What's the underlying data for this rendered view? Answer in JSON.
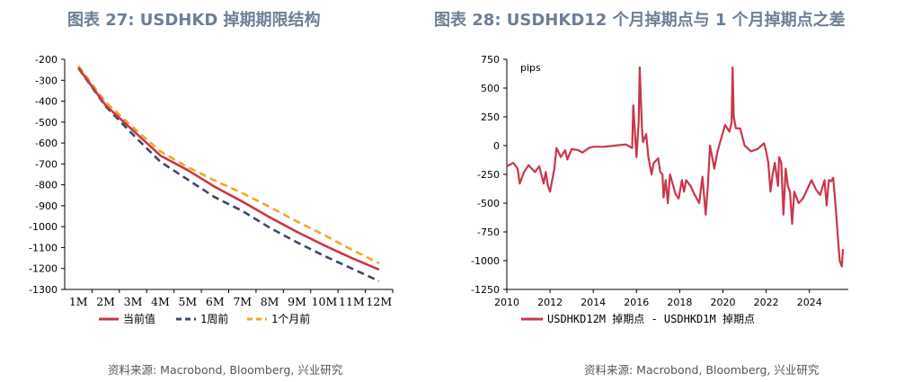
{
  "left_panel": {
    "title": "图表 27: USDHKD 掉期期限结构",
    "source": "资料来源: Macrobond, Bloomberg, 兴业研究"
  },
  "right_panel": {
    "title": "图表 28: USDHKD12 个月掉期点与 1 个月掉期点之差",
    "source": "资料来源: Macrobond, Bloomberg, 兴业研究"
  },
  "colors": {
    "red": "#c8374a",
    "navy": "#3d4a66",
    "orange": "#f5a623"
  },
  "chart_data": [
    {
      "type": "line",
      "title": "USDHKD 掉期期限结构",
      "categories": [
        "1M",
        "2M",
        "3M",
        "4M",
        "5M",
        "6M",
        "7M",
        "8M",
        "9M",
        "10M",
        "11M",
        "12M"
      ],
      "ylim": [
        -1300,
        -200
      ],
      "yticks": [
        -200,
        -300,
        -400,
        -500,
        -600,
        -700,
        -800,
        -900,
        -1000,
        -1100,
        -1200,
        -1300
      ],
      "series": [
        {
          "name": "当前值",
          "color": "#c8374a",
          "dash": "solid",
          "values": [
            -240,
            -420,
            -540,
            -660,
            -730,
            -810,
            -880,
            -955,
            -1025,
            -1090,
            -1150,
            -1205
          ]
        },
        {
          "name": "1周前",
          "color": "#3d4a66",
          "dash": "dashed",
          "values": [
            -242,
            -425,
            -560,
            -690,
            -775,
            -860,
            -925,
            -1005,
            -1075,
            -1140,
            -1200,
            -1260
          ]
        },
        {
          "name": "1个月前",
          "color": "#f5a623",
          "dash": "dashed",
          "values": [
            -232,
            -405,
            -525,
            -640,
            -715,
            -780,
            -840,
            -905,
            -975,
            -1040,
            -1110,
            -1175
          ]
        }
      ],
      "legend_position": "bottom"
    },
    {
      "type": "line",
      "title": "USDHKD12 个月掉期点与 1 个月掉期点之差",
      "unit_label": "pips",
      "xlim": [
        2010,
        2025.8
      ],
      "xticks": [
        2010,
        2012,
        2014,
        2016,
        2018,
        2020,
        2022,
        2024
      ],
      "ylim": [
        -1250,
        750
      ],
      "yticks": [
        750,
        500,
        250,
        0,
        -250,
        -500,
        -750,
        -1000,
        -1250
      ],
      "series": [
        {
          "name": "USDHKD12M 掉期点 - USDHKD1M 掉期点",
          "color": "#c8374a",
          "x": [
            2010.0,
            2010.3,
            2010.5,
            2010.6,
            2010.8,
            2011.0,
            2011.3,
            2011.5,
            2011.7,
            2011.8,
            2011.9,
            2012.0,
            2012.2,
            2012.3,
            2012.5,
            2012.7,
            2012.8,
            2013.0,
            2013.3,
            2013.5,
            2013.8,
            2014.0,
            2014.5,
            2015.0,
            2015.5,
            2015.8,
            2015.85,
            2015.95,
            2016.0,
            2016.1,
            2016.15,
            2016.25,
            2016.3,
            2016.45,
            2016.55,
            2016.7,
            2016.8,
            2017.0,
            2017.1,
            2017.2,
            2017.25,
            2017.35,
            2017.45,
            2017.55,
            2017.7,
            2017.8,
            2017.95,
            2018.1,
            2018.2,
            2018.3,
            2018.5,
            2018.7,
            2018.9,
            2019.05,
            2019.2,
            2019.3,
            2019.4,
            2019.6,
            2019.75,
            2019.9,
            2020.1,
            2020.3,
            2020.4,
            2020.45,
            2020.5,
            2020.6,
            2020.8,
            2021.0,
            2021.3,
            2021.6,
            2021.9,
            2022.0,
            2022.1,
            2022.2,
            2022.3,
            2022.4,
            2022.55,
            2022.6,
            2022.7,
            2022.8,
            2022.9,
            2023.0,
            2023.1,
            2023.2,
            2023.3,
            2023.5,
            2023.7,
            2023.9,
            2024.1,
            2024.3,
            2024.5,
            2024.7,
            2024.8,
            2024.9,
            2025.0,
            2025.1,
            2025.2,
            2025.3,
            2025.4,
            2025.5,
            2025.55
          ],
          "values": [
            -180,
            -150,
            -200,
            -330,
            -230,
            -170,
            -230,
            -180,
            -330,
            -230,
            -350,
            -400,
            -200,
            -20,
            -100,
            -40,
            -120,
            -30,
            -40,
            -60,
            -20,
            -10,
            -10,
            0,
            10,
            -20,
            350,
            50,
            -100,
            200,
            680,
            170,
            30,
            100,
            -100,
            -250,
            -150,
            -110,
            -230,
            -250,
            -450,
            -300,
            -500,
            -250,
            -350,
            -420,
            -460,
            -300,
            -400,
            -300,
            -350,
            -430,
            -500,
            -270,
            -600,
            -350,
            0,
            -200,
            -50,
            50,
            180,
            120,
            200,
            680,
            250,
            150,
            150,
            0,
            -50,
            -30,
            20,
            -50,
            -150,
            -400,
            -250,
            -150,
            -350,
            -100,
            -150,
            -600,
            -200,
            -350,
            -400,
            -680,
            -400,
            -500,
            -460,
            -380,
            -300,
            -380,
            -430,
            -300,
            -520,
            -300,
            -310,
            -280,
            -500,
            -750,
            -1000,
            -1050,
            -900
          ]
        }
      ],
      "legend_position": "bottom"
    }
  ]
}
